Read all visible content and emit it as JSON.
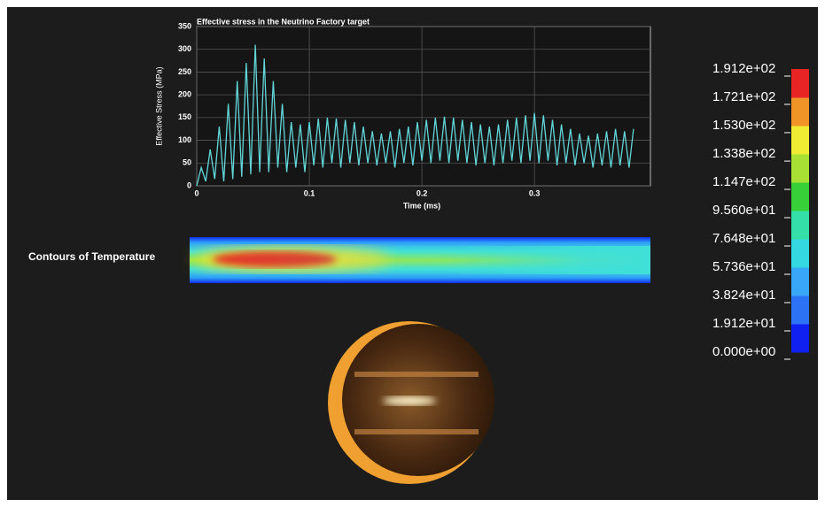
{
  "chart_data": {
    "type": "line",
    "title": "Effective stress in the Neutrino Factory target",
    "x_label": "Time (ms)",
    "y_label": "Effective Stress (MPa)",
    "x": [
      0,
      0.004,
      0.008,
      0.012,
      0.016,
      0.02,
      0.024,
      0.028,
      0.032,
      0.036,
      0.04,
      0.044,
      0.048,
      0.052,
      0.056,
      0.06,
      0.064,
      0.068,
      0.072,
      0.076,
      0.08,
      0.084,
      0.088,
      0.092,
      0.096,
      0.1,
      0.104,
      0.108,
      0.112,
      0.116,
      0.12,
      0.124,
      0.128,
      0.132,
      0.136,
      0.14,
      0.144,
      0.148,
      0.152,
      0.156,
      0.16,
      0.164,
      0.168,
      0.172,
      0.176,
      0.18,
      0.184,
      0.188,
      0.192,
      0.196,
      0.2,
      0.204,
      0.208,
      0.212,
      0.216,
      0.22,
      0.224,
      0.228,
      0.232,
      0.236,
      0.24,
      0.244,
      0.248,
      0.252,
      0.256,
      0.26,
      0.264,
      0.268,
      0.272,
      0.276,
      0.28,
      0.284,
      0.288,
      0.292,
      0.296,
      0.3,
      0.304,
      0.308,
      0.312,
      0.316,
      0.32,
      0.324,
      0.328,
      0.332,
      0.336,
      0.34,
      0.344,
      0.348,
      0.352,
      0.356,
      0.36,
      0.364,
      0.368,
      0.372,
      0.376,
      0.38,
      0.384,
      0.388
    ],
    "series": [
      {
        "color": "#62d6d8",
        "values": [
          0,
          40,
          10,
          80,
          15,
          130,
          10,
          180,
          15,
          230,
          20,
          270,
          25,
          310,
          30,
          280,
          30,
          230,
          40,
          180,
          30,
          140,
          40,
          135,
          30,
          140,
          45,
          148,
          40,
          150,
          50,
          148,
          40,
          145,
          50,
          140,
          45,
          130,
          50,
          120,
          45,
          115,
          50,
          120,
          40,
          125,
          50,
          130,
          45,
          140,
          55,
          145,
          50,
          150,
          55,
          152,
          50,
          150,
          55,
          145,
          50,
          140,
          45,
          135,
          50,
          130,
          45,
          135,
          50,
          145,
          55,
          150,
          50,
          155,
          55,
          160,
          50,
          155,
          55,
          145,
          45,
          135,
          50,
          125,
          45,
          115,
          50,
          110,
          40,
          115,
          45,
          120,
          40,
          125,
          45,
          120,
          40,
          125
        ]
      }
    ],
    "xlim": [
      0,
      0.403
    ],
    "xticks": [
      0,
      0.1,
      0.2,
      0.3
    ],
    "ylim": [
      0,
      350
    ],
    "yticks": [
      0,
      50,
      100,
      150,
      200,
      250,
      300,
      350
    ],
    "grid": true
  },
  "contour": {
    "label": "Contours of Temperature"
  },
  "colorbar": {
    "clim": [
      0,
      191.2
    ],
    "colors": [
      "#1020f0",
      "#2c72f4",
      "#3aa6f8",
      "#34d8e0",
      "#34e0a8",
      "#38d038",
      "#a8e034",
      "#f0ec34",
      "#f09428",
      "#e82424"
    ],
    "ticks": [
      {
        "value": 191.2,
        "label": "1.912e+02"
      },
      {
        "value": 172.1,
        "label": "1.721e+02"
      },
      {
        "value": 153.0,
        "label": "1.530e+02"
      },
      {
        "value": 133.8,
        "label": "1.338e+02"
      },
      {
        "value": 114.7,
        "label": "1.147e+02"
      },
      {
        "value": 95.6,
        "label": "9.560e+01"
      },
      {
        "value": 76.48,
        "label": "7.648e+01"
      },
      {
        "value": 57.36,
        "label": "5.736e+01"
      },
      {
        "value": 38.24,
        "label": "3.824e+01"
      },
      {
        "value": 19.12,
        "label": "1.912e+01"
      },
      {
        "value": 0,
        "label": "0.000e+00"
      }
    ]
  }
}
